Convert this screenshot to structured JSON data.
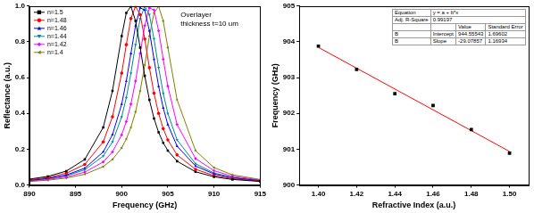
{
  "chart_data": [
    {
      "type": "line",
      "xlabel": "Frequency (GHz)",
      "ylabel": "Reflectance (a.u.)",
      "annotations": [
        "Overlayer",
        "thickness t=10 um"
      ],
      "legend": "upper left",
      "grid": false,
      "xlim": [
        890,
        915
      ],
      "xticks": [
        890,
        895,
        900,
        905,
        910,
        915
      ],
      "ylim": [
        0,
        1
      ],
      "yticks": [
        {
          "value": 0,
          "label": "0.0"
        },
        0.2,
        0.4,
        0.6,
        0.8,
        {
          "value": 1,
          "label": "1.0"
        }
      ],
      "x": [
        890,
        892,
        894,
        896,
        898,
        899,
        900,
        900.5,
        901,
        901.5,
        902,
        902.5,
        903,
        903.5,
        904,
        904.5,
        905,
        906,
        908,
        910,
        912,
        915
      ],
      "series": [
        {
          "name": "n=1.5",
          "color": "#000000",
          "marker": "square",
          "values": [
            0.033,
            0.048,
            0.078,
            0.143,
            0.322,
            0.526,
            0.832,
            0.962,
            0.998,
            0.917,
            0.768,
            0.61,
            0.476,
            0.372,
            0.294,
            0.236,
            0.192,
            0.133,
            0.074,
            0.046,
            0.031,
            0.02
          ]
        },
        {
          "name": "n=1.48",
          "color": "#ff0000",
          "marker": "circle",
          "values": [
            0.029,
            0.042,
            0.066,
            0.115,
            0.241,
            0.381,
            0.625,
            0.784,
            0.93,
            0.999,
            0.952,
            0.816,
            0.656,
            0.513,
            0.4,
            0.315,
            0.252,
            0.168,
            0.088,
            0.053,
            0.035,
            0.022
          ]
        },
        {
          "name": "n=1.46",
          "color": "#0000ff",
          "marker": "triangle",
          "values": [
            0.026,
            0.037,
            0.056,
            0.094,
            0.185,
            0.281,
            0.452,
            0.581,
            0.735,
            0.891,
            0.99,
            0.978,
            0.862,
            0.703,
            0.552,
            0.431,
            0.338,
            0.217,
            0.106,
            0.062,
            0.04,
            0.024
          ]
        },
        {
          "name": "n=1.44",
          "color": "#008b8b",
          "marker": "triangle_down",
          "values": [
            0.025,
            0.035,
            0.052,
            0.085,
            0.162,
            0.241,
            0.381,
            0.488,
            0.625,
            0.784,
            0.93,
            0.999,
            0.952,
            0.816,
            0.656,
            0.513,
            0.4,
            0.252,
            0.119,
            0.067,
            0.043,
            0.025
          ]
        },
        {
          "name": "n=1.42",
          "color": "#ff00ff",
          "marker": "diamond",
          "values": [
            0.022,
            0.031,
            0.045,
            0.072,
            0.129,
            0.185,
            0.281,
            0.354,
            0.452,
            0.581,
            0.735,
            0.891,
            0.99,
            0.978,
            0.862,
            0.703,
            0.552,
            0.338,
            0.148,
            0.08,
            0.049,
            0.028
          ]
        },
        {
          "name": "n=1.4",
          "color": "#808000",
          "marker": "triangle_left",
          "values": [
            0.02,
            0.027,
            0.039,
            0.06,
            0.103,
            0.143,
            0.208,
            0.257,
            0.322,
            0.41,
            0.526,
            0.671,
            0.832,
            0.962,
            0.998,
            0.917,
            0.768,
            0.476,
            0.192,
            0.097,
            0.057,
            0.031
          ]
        }
      ]
    },
    {
      "type": "scatter",
      "xlabel": "Refractive Index (a.u.)",
      "ylabel": "Frequency (GHz)",
      "grid": false,
      "xlim": [
        1.39,
        1.51
      ],
      "xticks": [
        {
          "value": 1.4,
          "label": "1.40"
        },
        1.42,
        1.44,
        1.46,
        1.48,
        {
          "value": 1.5,
          "label": "1.50"
        }
      ],
      "ylim": [
        900,
        905
      ],
      "yticks": [
        900,
        901,
        902,
        903,
        904,
        905
      ],
      "x": [
        1.4,
        1.42,
        1.44,
        1.46,
        1.48,
        1.5
      ],
      "values": [
        903.88,
        903.23,
        902.55,
        902.22,
        901.55,
        900.89
      ],
      "color": "#000000",
      "marker": "square",
      "fit": {
        "type": "line",
        "color": "#ff0000",
        "line_style": "solid",
        "equation_label": "Equation",
        "equation": "y = a + b*x",
        "r2_label": "Adj. R-Square",
        "adj_r_square": 0.99197,
        "columns": [
          "Value",
          "Standard Error"
        ],
        "parameter": "B",
        "intercept": {
          "name": "Intercept",
          "value": 944.55543,
          "error": 1.69602
        },
        "slope": {
          "name": "Slope",
          "value": -29.07857,
          "error": 1.16934
        }
      }
    }
  ]
}
